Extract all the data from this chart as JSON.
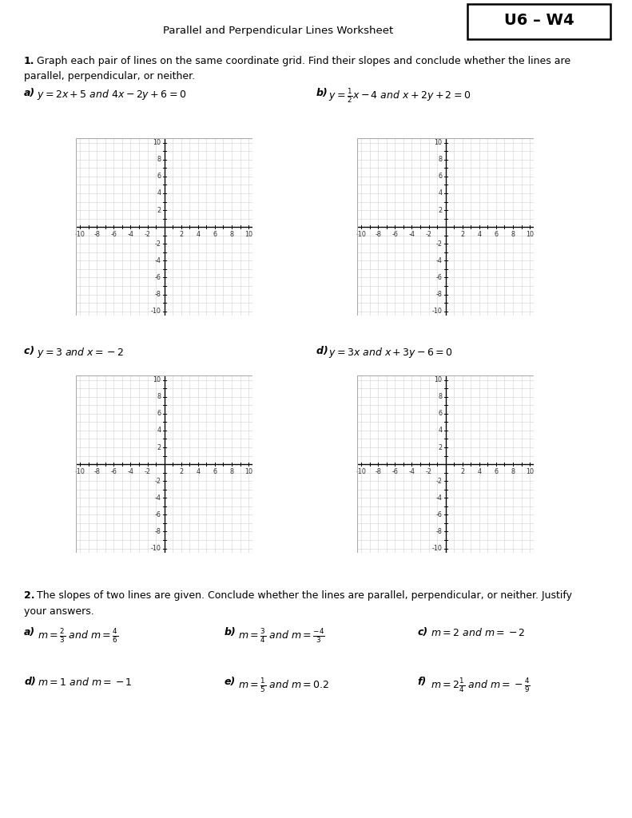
{
  "title": "Parallel and Perpendicular Lines Worksheet",
  "badge": "U6 – W4",
  "section1_intro_bold": "1.",
  "section1_intro_rest": " Graph each pair of lines on the same coordinate grid. Find their slopes and conclude whether the lines are\nparallel, perpendicular, or neither.",
  "section2_intro_bold": "2.",
  "section2_intro_rest": " The slopes of two lines are given. Conclude whether the lines are parallel, perpendicular, or neither. Justify\nyour answers.",
  "bg_color": "#ffffff",
  "grid_color": "#d0d0d0",
  "axis_color": "#000000",
  "tick_color": "#333333",
  "border_color": "#aaaaaa"
}
